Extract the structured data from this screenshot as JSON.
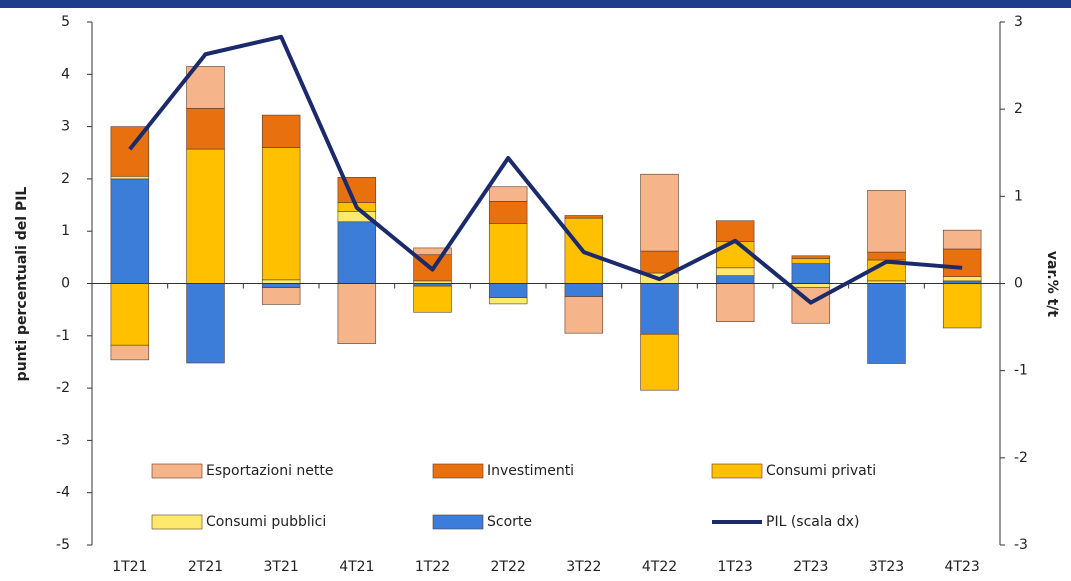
{
  "chart_data": {
    "type": "bar",
    "categories": [
      "1T21",
      "2T21",
      "3T21",
      "4T21",
      "1T22",
      "2T22",
      "3T22",
      "4T22",
      "1T23",
      "2T23",
      "3T23",
      "4T23"
    ],
    "series": [
      {
        "name": "Scorte",
        "color": "#3b7dd8",
        "values": [
          2.0,
          -1.52,
          -0.08,
          1.18,
          -0.05,
          -0.27,
          -0.25,
          -0.97,
          0.15,
          0.38,
          -1.53,
          0.05
        ]
      },
      {
        "name": "Consumi pubblici",
        "color": "#ffe86e",
        "values": [
          0.05,
          0.0,
          0.07,
          0.2,
          0.05,
          -0.12,
          0.0,
          0.2,
          0.15,
          -0.08,
          0.05,
          0.08
        ]
      },
      {
        "name": "Consumi privati",
        "color": "#ffc000",
        "values": [
          -1.18,
          2.57,
          2.53,
          0.17,
          -0.5,
          1.15,
          1.25,
          -1.07,
          0.5,
          0.1,
          0.4,
          -0.85
        ]
      },
      {
        "name": "Investimenti",
        "color": "#e8700f",
        "values": [
          0.95,
          0.78,
          0.62,
          0.48,
          0.5,
          0.42,
          0.05,
          0.42,
          0.4,
          0.05,
          0.15,
          0.53
        ]
      },
      {
        "name": "Esportazioni nette",
        "color": "#f5b48a",
        "values": [
          -0.28,
          0.8,
          -0.32,
          -1.15,
          0.13,
          0.28,
          -0.7,
          1.47,
          -0.73,
          -0.68,
          1.18,
          0.36
        ]
      },
      {
        "name": "PIL (scala dx)",
        "color": "#1b2a6b",
        "type": "line",
        "axis": "y2",
        "values": [
          1.54,
          2.63,
          2.83,
          0.87,
          0.16,
          1.44,
          0.36,
          0.05,
          0.49,
          -0.22,
          0.25,
          0.18
        ]
      }
    ],
    "y_label": "punti percentuali del PIL",
    "y2_label": "var.% t/t",
    "ylim": [
      -5,
      5
    ],
    "yticks": [
      -5,
      -4,
      -3,
      -2,
      -1,
      0,
      1,
      2,
      3,
      4,
      5
    ],
    "y2lim": [
      -3,
      3
    ],
    "y2ticks": [
      -3,
      -2,
      -1,
      0,
      1,
      2,
      3
    ],
    "legend": "inside-bottom"
  }
}
